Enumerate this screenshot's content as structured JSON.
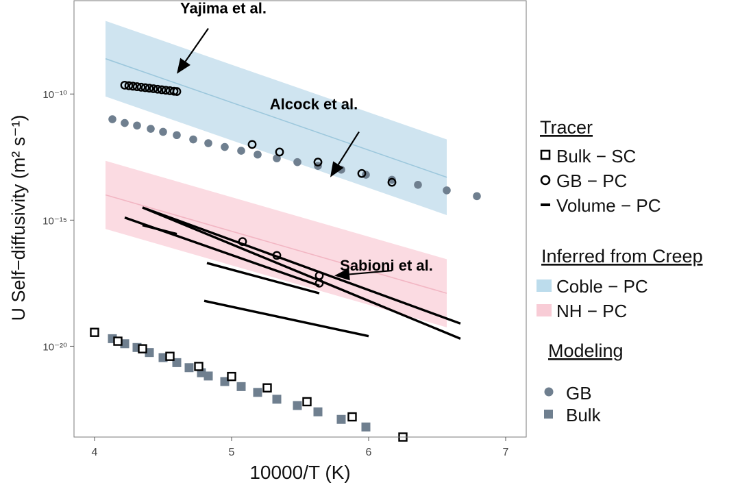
{
  "chart_data": {
    "type": "scatter",
    "xlabel": "10000/T (K)",
    "ylabel": "U Self−diffusivity (m² s⁻¹)",
    "xlim": [
      3.85,
      7.15
    ],
    "ylim_log10": [
      -23.6,
      -6.3
    ],
    "x_ticks": [
      4,
      5,
      6,
      7
    ],
    "y_ticks": [
      {
        "exp": -10,
        "label": "10⁻¹⁰"
      },
      {
        "exp": -15,
        "label": "10⁻¹⁵"
      },
      {
        "exp": -20,
        "label": "10⁻²⁰"
      }
    ],
    "grid": false,
    "legend_position": "right",
    "legend": {
      "tracer_title": "Tracer",
      "tracer_items": [
        {
          "label": "Bulk − SC",
          "symbol": "open-square"
        },
        {
          "label": "GB − PC",
          "symbol": "open-circle"
        },
        {
          "label": "Volume − PC",
          "symbol": "line"
        }
      ],
      "creep_title": "Inferred from Creep",
      "creep_items": [
        {
          "label": "Coble − PC",
          "color": "#bcdcec"
        },
        {
          "label": "NH − PC",
          "color": "#f8ccd6"
        }
      ],
      "modeling_title": "Modeling",
      "modeling_items": [
        {
          "label": "GB",
          "symbol": "filled-circle",
          "color": "#6f7f8f"
        },
        {
          "label": "Bulk",
          "symbol": "filled-square",
          "color": "#6f7f8f"
        }
      ]
    },
    "bands": [
      {
        "name": "Coble − PC",
        "x": [
          4.08,
          6.57
        ],
        "center_log10": [
          -8.6,
          -13.3
        ],
        "halfwidth_log10": 1.5,
        "fill": "#cfe4f0",
        "line": "#9cc7dc"
      },
      {
        "name": "NH − PC",
        "x": [
          4.08,
          6.57
        ],
        "center_log10": [
          -14.0,
          -17.9
        ],
        "halfwidth_log10": 1.35,
        "fill": "#fbdbe2",
        "line": "#f2b6c3"
      }
    ],
    "modeling_gb": {
      "x": [
        4.13,
        4.22,
        4.31,
        4.41,
        4.5,
        4.6,
        4.72,
        4.83,
        4.95,
        5.07,
        5.19,
        5.33,
        5.48,
        5.63,
        5.8,
        5.98,
        6.17,
        6.36,
        6.57,
        6.79
      ],
      "log10_y": [
        -11.0,
        -11.15,
        -11.25,
        -11.38,
        -11.5,
        -11.63,
        -11.8,
        -11.95,
        -12.1,
        -12.25,
        -12.4,
        -12.55,
        -12.7,
        -12.85,
        -13.0,
        -13.2,
        -13.4,
        -13.6,
        -13.82,
        -14.05
      ]
    },
    "modeling_bulk": {
      "x": [
        4.13,
        4.22,
        4.31,
        4.4,
        4.5,
        4.6,
        4.69,
        4.78,
        4.83,
        4.95,
        5.07,
        5.19,
        5.33,
        5.48,
        5.63,
        5.8,
        5.98
      ],
      "log10_y": [
        -19.7,
        -19.9,
        -20.05,
        -20.25,
        -20.45,
        -20.65,
        -20.85,
        -21.05,
        -21.18,
        -21.4,
        -21.6,
        -21.83,
        -22.1,
        -22.35,
        -22.6,
        -22.9,
        -23.2
      ]
    },
    "tracer_bulk_sc": {
      "x": [
        4.0,
        4.17,
        4.35,
        4.55,
        4.76,
        5.0,
        5.26,
        5.55,
        5.88,
        6.25
      ],
      "log10_y": [
        -19.45,
        -19.8,
        -20.1,
        -20.4,
        -20.8,
        -21.2,
        -21.65,
        -22.2,
        -22.8,
        -23.6
      ]
    },
    "tracer_gb_pc": {
      "x": [
        4.22,
        4.25,
        4.28,
        4.31,
        4.34,
        4.37,
        4.4,
        4.43,
        4.46,
        4.49,
        4.52,
        4.55,
        4.58,
        4.6,
        5.15,
        5.35,
        5.63,
        5.95,
        6.17,
        5.08,
        5.33,
        5.64,
        5.64
      ],
      "log10_y": [
        -9.65,
        -9.67,
        -9.69,
        -9.71,
        -9.73,
        -9.75,
        -9.77,
        -9.79,
        -9.81,
        -9.83,
        -9.85,
        -9.87,
        -9.89,
        -9.9,
        -12.0,
        -12.3,
        -12.7,
        -13.15,
        -13.5,
        -15.85,
        -16.4,
        -17.2,
        -17.5
      ]
    },
    "tracer_volume_pc": [
      {
        "x": [
          4.35,
          6.67
        ],
        "log10_y": [
          -14.5,
          -19.7
        ]
      },
      {
        "x": [
          4.35,
          6.67
        ],
        "log10_y": [
          -14.5,
          -19.1
        ]
      },
      {
        "x": [
          4.22,
          5.64
        ],
        "log10_y": [
          -14.9,
          -17.6
        ]
      },
      {
        "x": [
          4.35,
          4.6
        ],
        "log10_y": [
          -15.2,
          -15.55
        ]
      },
      {
        "x": [
          4.82,
          5.64
        ],
        "log10_y": [
          -16.7,
          -17.9
        ]
      },
      {
        "x": [
          4.8,
          6.0
        ],
        "log10_y": [
          -18.2,
          -19.6
        ]
      }
    ],
    "annotations": [
      {
        "text": "Yajima et al.",
        "label_x": 4.94,
        "label_log10": -6.8,
        "tail_x": 4.83,
        "tail_log10": -7.4,
        "head_x": 4.6,
        "head_log10": -9.2
      },
      {
        "text": "Alcock et al.",
        "label_x": 5.6,
        "label_log10": -10.6,
        "tail_x": 5.93,
        "tail_log10": -11.5,
        "head_x": 5.72,
        "head_log10": -13.3
      },
      {
        "text": "Sabioni et al.",
        "label_x": 6.13,
        "label_log10": -17.0,
        "tail_x": 6.17,
        "tail_log10": -17.0,
        "head_x": 5.75,
        "head_log10": -17.2
      }
    ]
  }
}
